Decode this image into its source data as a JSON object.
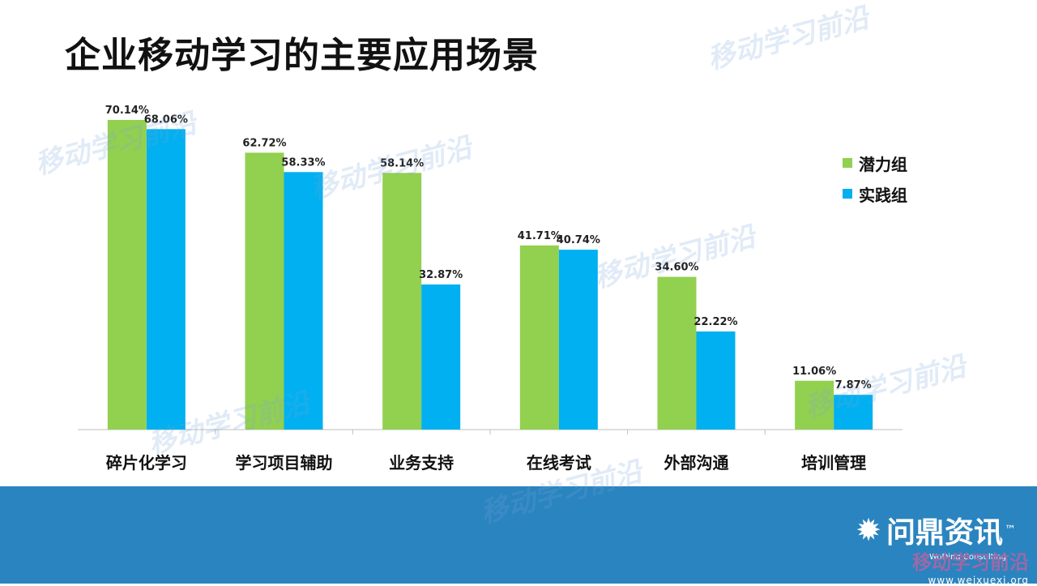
{
  "title": "企业移动学习的主要应用场景",
  "watermark_text": "移动学习前沿",
  "brand": {
    "icon": "gear-sun-icon",
    "name": "问鼎资讯",
    "tm": "™",
    "subtitle": "WoDing Consulting"
  },
  "site": {
    "name": "移动学习前沿",
    "url": "www.weixuexi.org"
  },
  "colors": {
    "series1": "#92d050",
    "series2": "#00b0f0",
    "footer": "#2a84bf"
  },
  "chart_data": {
    "type": "bar",
    "categories": [
      "碎片化学习",
      "学习项目辅助",
      "业务支持",
      "在线考试",
      "外部沟通",
      "培训管理"
    ],
    "series": [
      {
        "name": "潜力组",
        "values": [
          70.14,
          62.72,
          58.14,
          41.71,
          34.6,
          11.06
        ],
        "labels": [
          "70.14%",
          "62.72%",
          "58.14%",
          "41.71%",
          "34.60%",
          "11.06%"
        ]
      },
      {
        "name": "实践组",
        "values": [
          68.06,
          58.33,
          32.87,
          40.74,
          22.22,
          7.87
        ],
        "labels": [
          "68.06%",
          "58.33%",
          "32.87%",
          "40.74%",
          "22.22%",
          "7.87%"
        ]
      }
    ],
    "ylim": [
      0,
      75
    ],
    "legend_position": "right",
    "grid": false
  }
}
